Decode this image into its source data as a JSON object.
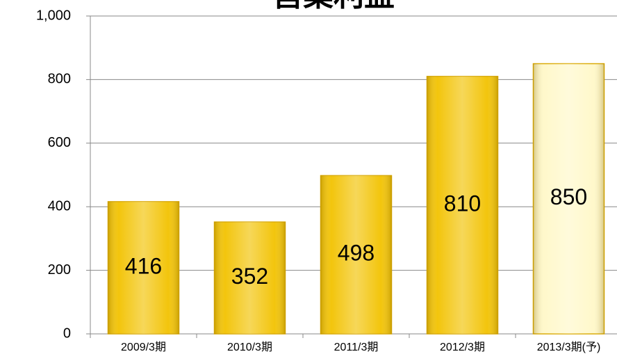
{
  "chart_data": {
    "type": "bar",
    "title": "営業利益",
    "categories": [
      "2009/3期",
      "2010/3期",
      "2011/3期",
      "2012/3期",
      "2013/3期(予)"
    ],
    "values": [
      416,
      352,
      498,
      810,
      850
    ],
    "colors": [
      "#f2c200",
      "#f2c200",
      "#f2c200",
      "#f2c200",
      "#fff8c8"
    ],
    "ylim": [
      0,
      1000
    ],
    "yticks": [
      0,
      200,
      400,
      600,
      800,
      {
        "value": 1000,
        "label": "1,000"
      }
    ],
    "grid": true
  }
}
